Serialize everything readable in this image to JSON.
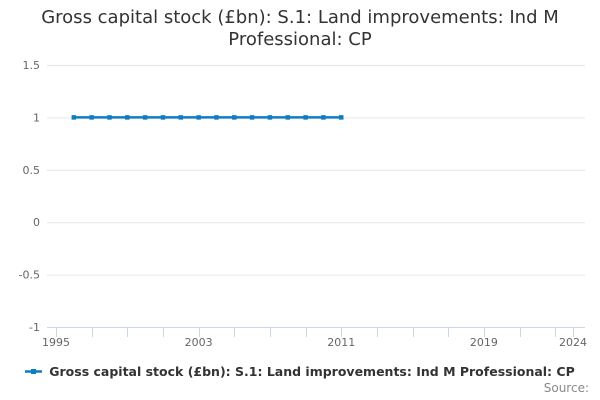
{
  "chart": {
    "title": "Gross capital stock (£bn): S.1: Land improvements: Ind M Professional: CP",
    "source_label": "Source:",
    "legend": {
      "label": "Gross capital stock (£bn): S.1: Land improvements: Ind M Professional: CP"
    },
    "colors": {
      "series": "#0e7dc2",
      "grid": "#e6e6e6",
      "axis": "#ccd6eb",
      "tick_label": "#666666",
      "title_text": "#333333",
      "legend_text": "#333333",
      "source_text": "#898989",
      "background": "#ffffff"
    }
  },
  "chart_data": {
    "type": "line",
    "title": "Gross capital stock (£bn): S.1: Land improvements: Ind M Professional: CP",
    "xlabel": "",
    "ylabel": "",
    "xlim": [
      1995,
      2024
    ],
    "ylim": [
      -1,
      1.5
    ],
    "grid": "horizontal",
    "legend_position": "bottom",
    "marker": "square",
    "x": [
      1996,
      1997,
      1998,
      1999,
      2000,
      2001,
      2002,
      2003,
      2004,
      2005,
      2006,
      2007,
      2008,
      2009,
      2010,
      2011
    ],
    "series": [
      {
        "name": "Gross capital stock (£bn): S.1: Land improvements: Ind M Professional: CP",
        "values": [
          1,
          1,
          1,
          1,
          1,
          1,
          1,
          1,
          1,
          1,
          1,
          1,
          1,
          1,
          1,
          1
        ]
      }
    ],
    "yticks": [
      {
        "v": 1.5,
        "label": "1.5"
      },
      {
        "v": 1,
        "label": "1"
      },
      {
        "v": 0.5,
        "label": "0.5"
      },
      {
        "v": 0,
        "label": "0"
      },
      {
        "v": -0.5,
        "label": "-0.5"
      },
      {
        "v": -1,
        "label": "-1"
      }
    ],
    "xticks_labeled": [
      1995,
      2003,
      2011,
      2019,
      2024
    ],
    "xtick_minor_step": 2
  }
}
